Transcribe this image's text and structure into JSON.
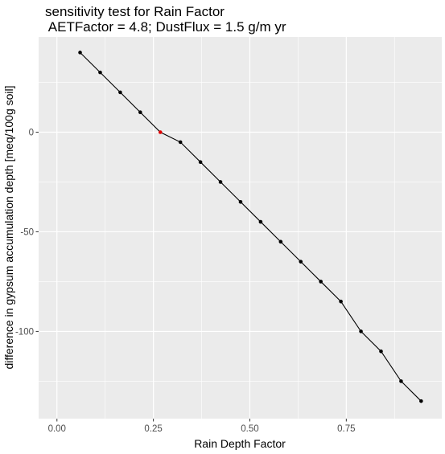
{
  "chart_data": {
    "type": "line",
    "title": "sensitivity test for Rain Factor",
    "subtitle": " AETFactor = 4.8; DustFlux = 1.5 g/m yr",
    "xlabel": "Rain Depth Factor",
    "ylabel": "difference in gypsum accumulation depth [meq/100g soil]",
    "xlim": [
      -0.0475,
      0.9975
    ],
    "ylim": [
      -143.8,
      47.8
    ],
    "x_ticks": [
      0.0,
      0.25,
      0.5,
      0.75
    ],
    "x_tick_labels": [
      "0.00",
      "0.25",
      "0.50",
      "0.75"
    ],
    "y_ticks": [
      0,
      -50,
      -100
    ],
    "y_tick_labels": [
      "0",
      "-50",
      "-100"
    ],
    "grid": true,
    "legend": "none",
    "colors": {
      "panel": "#ebebeb",
      "grid": "#ffffff",
      "line": "#000000",
      "point": "#000000",
      "highlight": "#e00000"
    },
    "series": [
      {
        "x": [
          0.06,
          0.112,
          0.164,
          0.216,
          0.268,
          0.32,
          0.372,
          0.424,
          0.476,
          0.528,
          0.58,
          0.632,
          0.684,
          0.736,
          0.788,
          0.84,
          0.892,
          0.944
        ],
        "values": [
          40,
          30,
          20,
          10,
          0,
          -5,
          -15,
          -25,
          -35,
          -45,
          -55,
          -65,
          -75,
          -85,
          -100,
          -110,
          -125,
          -135
        ]
      }
    ],
    "highlight_point": {
      "x": 0.268,
      "y": 0
    }
  }
}
